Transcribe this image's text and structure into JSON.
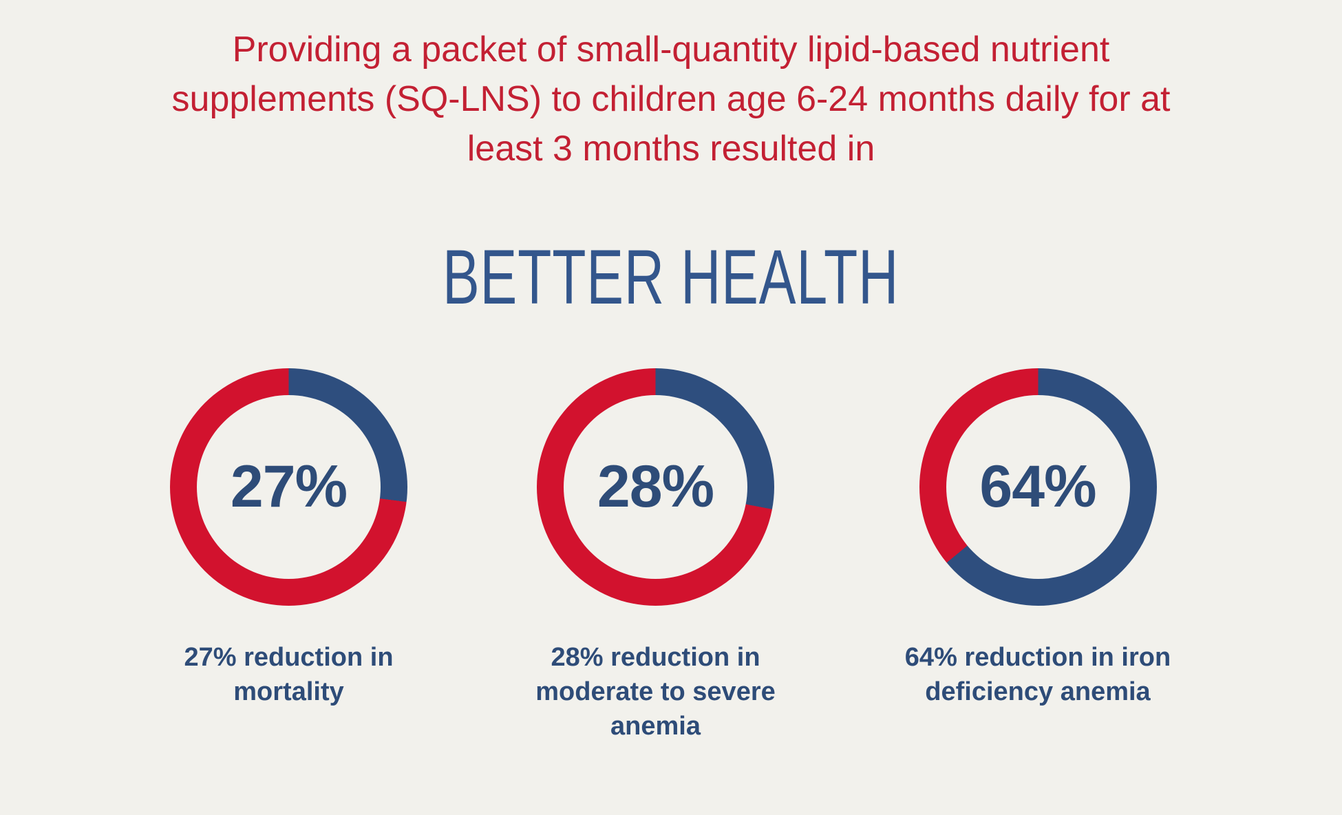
{
  "page": {
    "background_color": "#F2F1EC"
  },
  "header": {
    "text": "Providing a packet of small-quantity lipid-based nutrient supplements (SQ-LNS) to children age 6-24 months daily for at least 3 months resulted in",
    "color": "#C32033"
  },
  "title": {
    "text": "BETTER HEALTH",
    "color": "#33568C"
  },
  "chart_data": {
    "type": "pie",
    "variant": "donut",
    "arc_start": "top",
    "arc_direction": "clockwise",
    "colors": {
      "value_color": "#2E4E7E",
      "remainder_color": "#D2122E",
      "center_label_color": "#2E4C78"
    },
    "charts": [
      {
        "value": 27,
        "remainder": 73,
        "label": "27%",
        "caption": "27% reduction in mortality"
      },
      {
        "value": 28,
        "remainder": 72,
        "label": "28%",
        "caption": "28% reduction in moderate to severe anemia"
      },
      {
        "value": 64,
        "remainder": 36,
        "label": "64%",
        "caption": "64% reduction in iron deficiency anemia"
      }
    ]
  }
}
